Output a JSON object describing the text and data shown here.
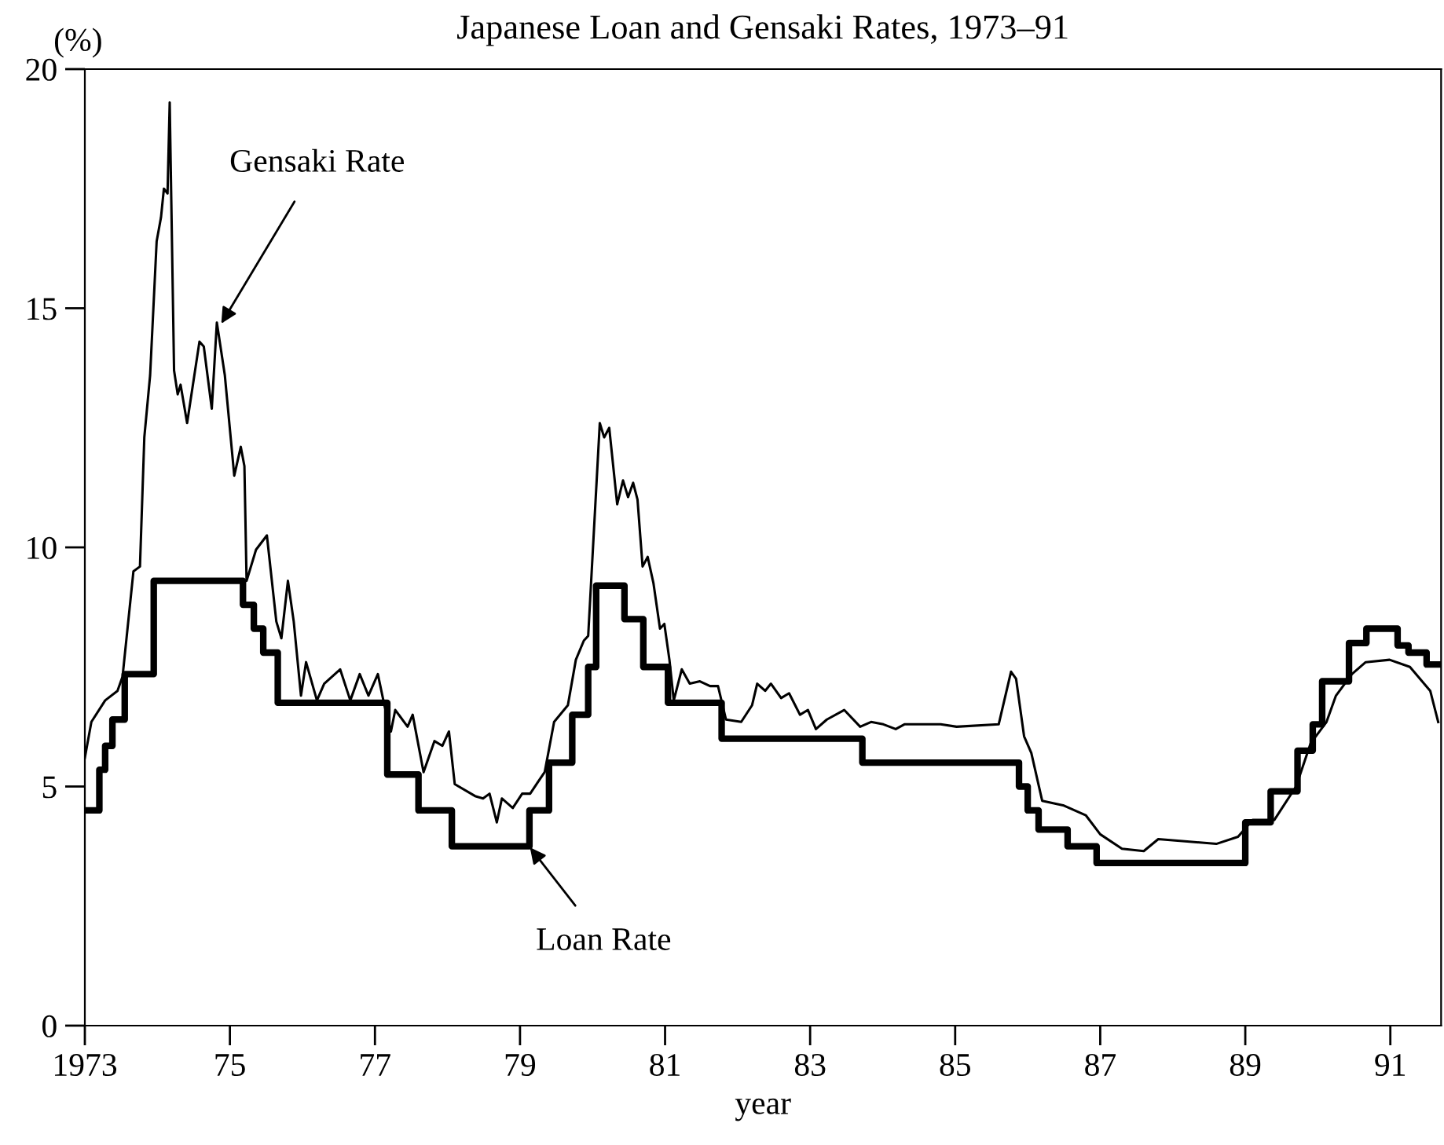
{
  "chart_data": {
    "type": "line",
    "title": "Japanese Loan and Gensaki Rates, 1973–91",
    "xlabel": "year",
    "ylabel": "(%)",
    "xlim": [
      1973,
      1991.7
    ],
    "ylim": [
      0,
      20
    ],
    "xticks": [
      1973,
      {
        "value": 1975,
        "label": "75"
      },
      {
        "value": 1977,
        "label": "77"
      },
      {
        "value": 1979,
        "label": "79"
      },
      {
        "value": 1981,
        "label": "81"
      },
      {
        "value": 1983,
        "label": "83"
      },
      {
        "value": 1985,
        "label": "85"
      },
      {
        "value": 1987,
        "label": "87"
      },
      {
        "value": 1989,
        "label": "89"
      },
      {
        "value": 1991,
        "label": "91"
      }
    ],
    "yticks": [
      0,
      5,
      10,
      15,
      20
    ],
    "grid": false,
    "legend": false,
    "annotations": [
      {
        "text": "Gensaki Rate",
        "x": 1974.85,
        "y": 14.6
      },
      {
        "text": "Loan Rate",
        "x": 1979.1,
        "y": 3.8
      }
    ],
    "series": [
      {
        "color": "#000000",
        "x": [
          1973.0,
          1973.09,
          1973.28,
          1973.45,
          1973.52,
          1973.67,
          1973.76,
          1973.82,
          1973.9,
          1973.99,
          1974.05,
          1974.09,
          1974.14,
          1974.17,
          1974.23,
          1974.28,
          1974.32,
          1974.41,
          1974.58,
          1974.64,
          1974.75,
          1974.82,
          1974.93,
          1975.06,
          1975.15,
          1975.2,
          1975.23,
          1975.36,
          1975.51,
          1975.64,
          1975.71,
          1975.8,
          1975.88,
          1975.98,
          1976.05,
          1976.2,
          1976.3,
          1976.52,
          1976.66,
          1976.79,
          1976.91,
          1977.04,
          1977.13,
          1977.22,
          1977.28,
          1977.45,
          1977.52,
          1977.67,
          1977.82,
          1977.93,
          1978.02,
          1978.1,
          1978.38,
          1978.49,
          1978.58,
          1978.68,
          1978.75,
          1978.9,
          1979.03,
          1979.14,
          1979.25,
          1979.34,
          1979.47,
          1979.66,
          1979.77,
          1979.88,
          1979.94,
          1980.1,
          1980.16,
          1980.23,
          1980.34,
          1980.42,
          1980.49,
          1980.56,
          1980.62,
          1980.69,
          1980.76,
          1980.84,
          1980.93,
          1980.99,
          1981.06,
          1981.12,
          1981.23,
          1981.34,
          1981.48,
          1981.62,
          1981.73,
          1981.84,
          1982.05,
          1982.2,
          1982.27,
          1982.38,
          1982.46,
          1982.6,
          1982.71,
          1982.86,
          1982.97,
          1983.08,
          1983.23,
          1983.47,
          1983.69,
          1983.84,
          1984.01,
          1984.18,
          1984.3,
          1984.8,
          1985.02,
          1985.6,
          1985.77,
          1985.84,
          1985.95,
          1986.05,
          1986.2,
          1986.5,
          1986.8,
          1987.0,
          1987.3,
          1987.6,
          1987.8,
          1988.2,
          1988.6,
          1988.9,
          1989.1,
          1989.4,
          1989.7,
          1989.9,
          1990.12,
          1990.25,
          1990.47,
          1990.66,
          1990.99,
          1991.27,
          1991.55,
          1991.66
        ],
        "values": [
          5.6,
          6.35,
          6.8,
          7.0,
          7.3,
          9.5,
          9.6,
          12.3,
          13.6,
          16.4,
          16.9,
          17.5,
          17.4,
          19.3,
          13.7,
          13.2,
          13.4,
          12.6,
          14.3,
          14.2,
          12.9,
          14.7,
          13.6,
          11.5,
          12.1,
          11.7,
          9.3,
          9.95,
          10.25,
          8.45,
          8.1,
          9.3,
          8.45,
          6.9,
          7.6,
          6.8,
          7.15,
          7.45,
          6.8,
          7.35,
          6.9,
          7.35,
          6.7,
          6.15,
          6.6,
          6.25,
          6.5,
          5.3,
          5.95,
          5.85,
          6.15,
          5.05,
          4.8,
          4.75,
          4.85,
          4.25,
          4.75,
          4.55,
          4.85,
          4.85,
          5.1,
          5.3,
          6.35,
          6.7,
          7.65,
          8.05,
          8.15,
          12.6,
          12.3,
          12.5,
          10.9,
          11.4,
          11.05,
          11.35,
          11.0,
          9.6,
          9.8,
          9.25,
          8.3,
          8.4,
          7.65,
          6.8,
          7.45,
          7.15,
          7.2,
          7.1,
          7.1,
          6.4,
          6.35,
          6.7,
          7.15,
          7.0,
          7.15,
          6.85,
          6.95,
          6.5,
          6.6,
          6.2,
          6.4,
          6.6,
          6.25,
          6.35,
          6.3,
          6.2,
          6.3,
          6.3,
          6.25,
          6.3,
          7.4,
          7.25,
          6.05,
          5.7,
          4.7,
          4.6,
          4.4,
          4.0,
          3.7,
          3.65,
          3.9,
          3.85,
          3.8,
          3.95,
          4.3,
          4.3,
          5.0,
          5.9,
          6.35,
          6.9,
          7.35,
          7.6,
          7.65,
          7.5,
          7.0,
          6.35
        ]
      },
      {
        "type": "step",
        "color": "#000000",
        "x": [
          1973.0,
          1973.2,
          1973.28,
          1973.38,
          1973.55,
          1973.95,
          1975.18,
          1975.33,
          1975.46,
          1975.66,
          1977.17,
          1977.6,
          1978.06,
          1979.13,
          1979.4,
          1979.72,
          1979.94,
          1980.05,
          1980.44,
          1980.7,
          1981.04,
          1981.78,
          1983.72,
          1985.88,
          1986.0,
          1986.15,
          1986.55,
          1986.95,
          1989.0,
          1989.35,
          1989.72,
          1989.93,
          1990.06,
          1990.43,
          1990.67,
          1991.1,
          1991.25,
          1991.5,
          1991.7
        ],
        "values": [
          4.5,
          5.35,
          5.85,
          6.4,
          7.35,
          9.3,
          8.8,
          8.3,
          7.8,
          6.75,
          5.25,
          4.5,
          3.75,
          4.5,
          5.5,
          6.5,
          7.5,
          9.2,
          8.5,
          7.5,
          6.75,
          6.0,
          5.5,
          5.0,
          4.5,
          4.1,
          3.75,
          3.4,
          4.25,
          4.9,
          5.75,
          6.3,
          7.2,
          8.0,
          8.3,
          7.95,
          7.8,
          7.55,
          7.55
        ]
      }
    ]
  }
}
